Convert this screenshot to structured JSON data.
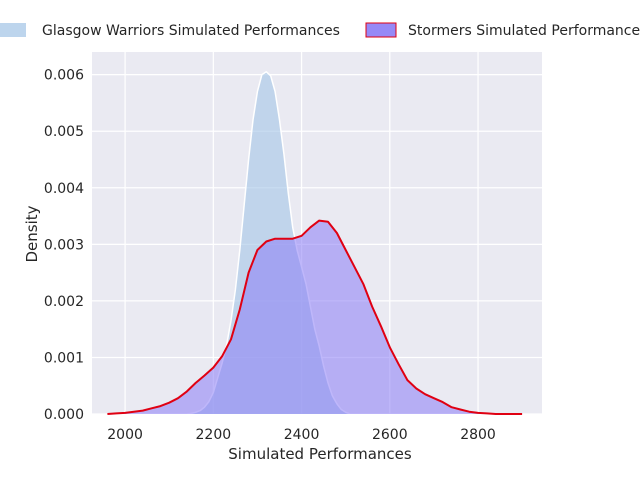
{
  "chart_data": {
    "type": "area",
    "title": "",
    "xlabel": "Simulated Performances",
    "ylabel": "Density",
    "xlim": [
      1925,
      2945
    ],
    "ylim": [
      0,
      0.0064
    ],
    "x_ticks": [
      2000,
      2200,
      2400,
      2600,
      2800
    ],
    "x_tick_labels": [
      "2000",
      "2200",
      "2400",
      "2600",
      "2800"
    ],
    "y_ticks": [
      0.0,
      0.001,
      0.002,
      0.003,
      0.004,
      0.005,
      0.006
    ],
    "y_tick_labels": [
      "0.000",
      "0.001",
      "0.002",
      "0.003",
      "0.004",
      "0.005",
      "0.006"
    ],
    "grid": true,
    "background": "#eaeaf2",
    "legend_position": "top",
    "series": [
      {
        "name": "Glasgow Warriors Simulated Performances",
        "fill": "#a7c7e7",
        "fill_opacity": 0.62,
        "line": "#ffffff",
        "points": [
          [
            2140,
            0.0
          ],
          [
            2150,
            1e-05
          ],
          [
            2160,
            3e-05
          ],
          [
            2170,
            6e-05
          ],
          [
            2180,
            0.00012
          ],
          [
            2190,
            0.00022
          ],
          [
            2200,
            0.00038
          ],
          [
            2210,
            0.00064
          ],
          [
            2220,
            0.0009
          ],
          [
            2230,
            0.00122
          ],
          [
            2240,
            0.00165
          ],
          [
            2250,
            0.0022
          ],
          [
            2260,
            0.0029
          ],
          [
            2270,
            0.0037
          ],
          [
            2280,
            0.0045
          ],
          [
            2290,
            0.0052
          ],
          [
            2300,
            0.0057
          ],
          [
            2310,
            0.006
          ],
          [
            2320,
            0.00605
          ],
          [
            2330,
            0.00598
          ],
          [
            2340,
            0.0057
          ],
          [
            2350,
            0.0052
          ],
          [
            2360,
            0.0046
          ],
          [
            2370,
            0.0039
          ],
          [
            2380,
            0.0033
          ],
          [
            2390,
            0.0029
          ],
          [
            2400,
            0.0026
          ],
          [
            2410,
            0.0023
          ],
          [
            2420,
            0.0019
          ],
          [
            2430,
            0.0015
          ],
          [
            2440,
            0.0012
          ],
          [
            2450,
            0.00085
          ],
          [
            2460,
            0.00055
          ],
          [
            2470,
            0.00032
          ],
          [
            2480,
            0.00018
          ],
          [
            2490,
            8e-05
          ],
          [
            2500,
            3e-05
          ],
          [
            2510,
            0.0
          ]
        ]
      },
      {
        "name": "Stormers Simulated Performances",
        "fill": "#8b7cf6",
        "fill_opacity": 0.55,
        "line": "#e00012",
        "points": [
          [
            1960,
            0.0
          ],
          [
            1980,
            1e-05
          ],
          [
            2000,
            2e-05
          ],
          [
            2020,
            4e-05
          ],
          [
            2040,
            6e-05
          ],
          [
            2060,
            0.0001
          ],
          [
            2080,
            0.00014
          ],
          [
            2100,
            0.0002
          ],
          [
            2120,
            0.00028
          ],
          [
            2140,
            0.0004
          ],
          [
            2160,
            0.00055
          ],
          [
            2180,
            0.00068
          ],
          [
            2200,
            0.00082
          ],
          [
            2220,
            0.00102
          ],
          [
            2240,
            0.00132
          ],
          [
            2260,
            0.00185
          ],
          [
            2280,
            0.0025
          ],
          [
            2300,
            0.0029
          ],
          [
            2320,
            0.00305
          ],
          [
            2340,
            0.0031
          ],
          [
            2360,
            0.0031
          ],
          [
            2380,
            0.0031
          ],
          [
            2400,
            0.00315
          ],
          [
            2420,
            0.0033
          ],
          [
            2440,
            0.00342
          ],
          [
            2460,
            0.0034
          ],
          [
            2480,
            0.0032
          ],
          [
            2500,
            0.0029
          ],
          [
            2520,
            0.0026
          ],
          [
            2540,
            0.0023
          ],
          [
            2560,
            0.0019
          ],
          [
            2580,
            0.00155
          ],
          [
            2600,
            0.00118
          ],
          [
            2620,
            0.00088
          ],
          [
            2640,
            0.0006
          ],
          [
            2660,
            0.00045
          ],
          [
            2680,
            0.00035
          ],
          [
            2700,
            0.00028
          ],
          [
            2720,
            0.00021
          ],
          [
            2740,
            0.00012
          ],
          [
            2760,
            8e-05
          ],
          [
            2780,
            4e-05
          ],
          [
            2800,
            2e-05
          ],
          [
            2820,
            1e-05
          ],
          [
            2840,
            0.0
          ],
          [
            2900,
            0.0
          ]
        ]
      }
    ]
  }
}
